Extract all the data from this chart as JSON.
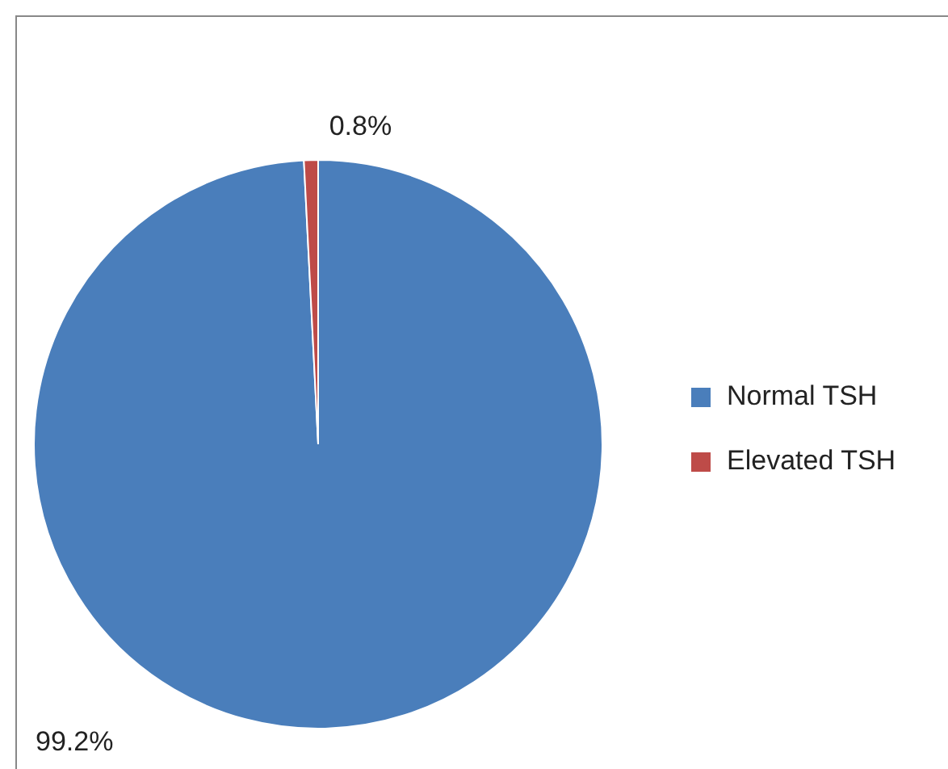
{
  "chart_data": {
    "type": "pie",
    "categories": [
      "Normal TSH",
      "Elevated TSH"
    ],
    "values": [
      99.2,
      0.8
    ],
    "colors": [
      "#4a7ebb",
      "#be4b48"
    ],
    "value_labels": [
      "99.2%",
      "0.8%"
    ],
    "legend": "right"
  }
}
